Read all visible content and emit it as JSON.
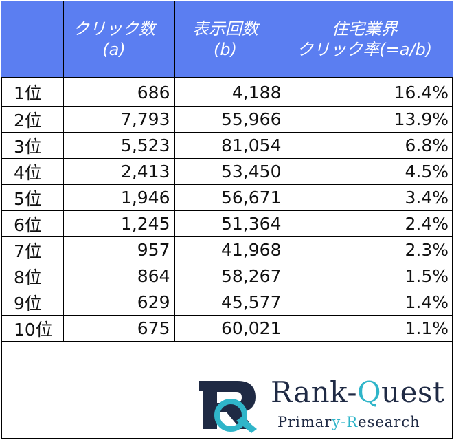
{
  "table": {
    "headers": [
      {
        "lines": [
          "",
          ""
        ]
      },
      {
        "lines": [
          "クリック数",
          "(a)"
        ]
      },
      {
        "lines": [
          "表示回数",
          "(b)"
        ]
      },
      {
        "lines": [
          "住宅業界",
          "クリック率(=a/b)"
        ]
      }
    ],
    "rows": [
      {
        "rank": "1位",
        "clicks": "686",
        "impressions": "4,188",
        "ctr": "16.4%"
      },
      {
        "rank": "2位",
        "clicks": "7,793",
        "impressions": "55,966",
        "ctr": "13.9%"
      },
      {
        "rank": "3位",
        "clicks": "5,523",
        "impressions": "81,054",
        "ctr": "6.8%"
      },
      {
        "rank": "4位",
        "clicks": "2,413",
        "impressions": "53,450",
        "ctr": "4.5%"
      },
      {
        "rank": "5位",
        "clicks": "1,946",
        "impressions": "56,671",
        "ctr": "3.4%"
      },
      {
        "rank": "6位",
        "clicks": "1,245",
        "impressions": "51,364",
        "ctr": "2.4%"
      },
      {
        "rank": "7位",
        "clicks": "957",
        "impressions": "41,968",
        "ctr": "2.3%"
      },
      {
        "rank": "8位",
        "clicks": "864",
        "impressions": "58,267",
        "ctr": "1.5%"
      },
      {
        "rank": "9位",
        "clicks": "629",
        "impressions": "45,577",
        "ctr": "1.4%"
      },
      {
        "rank": "10位",
        "clicks": "675",
        "impressions": "60,021",
        "ctr": "1.1%"
      }
    ]
  },
  "logo": {
    "name_part1": "Rank-",
    "name_part2": "Q",
    "name_part3": "uest",
    "sub_part1": "Primar",
    "sub_part2": "y-R",
    "sub_part3": "esearch",
    "icon": "rq-logo-icon"
  },
  "colors": {
    "header_bg": "#5b7ef1",
    "header_text": "#ffffff",
    "brand_navy": "#1f2a44",
    "brand_teal": "#2fb5c9"
  }
}
